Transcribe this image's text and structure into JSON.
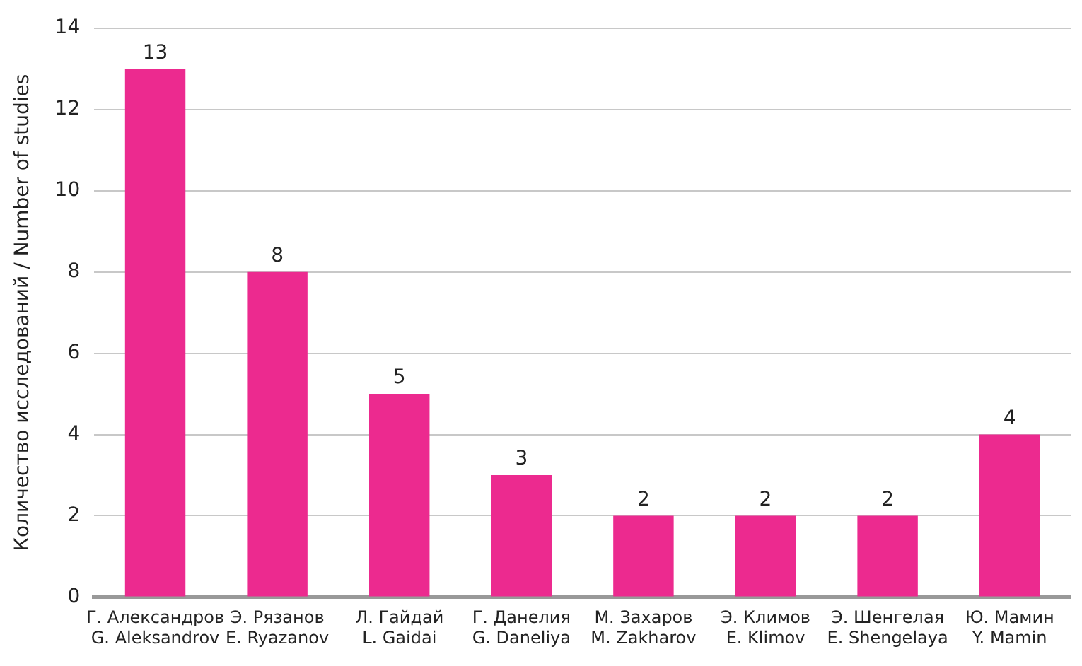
{
  "chart_data": {
    "type": "bar",
    "ylabel": "Количество исследований / Number of studies",
    "categories": [
      "Г. Александров\nG. Aleksandrov",
      "Э. Рязанов\nE. Ryazanov",
      "Л. Гайдай\nL. Gaidai",
      "Г. Данелия\nG. Daneliya",
      "М. Захаров\nM. Zakharov",
      "Э. Климов\nE. Klimov",
      "Э. Шенгелая\nE. Shengelaya",
      "Ю. Мамин\nY. Mamin"
    ],
    "values": [
      13,
      8,
      5,
      3,
      2,
      2,
      2,
      4
    ],
    "color": "#ec2a8f",
    "ylim": [
      0,
      14
    ],
    "yticks": [
      0,
      2,
      4,
      6,
      8,
      10,
      12,
      14
    ],
    "grid": "y",
    "data_labels": true,
    "legend": false
  }
}
